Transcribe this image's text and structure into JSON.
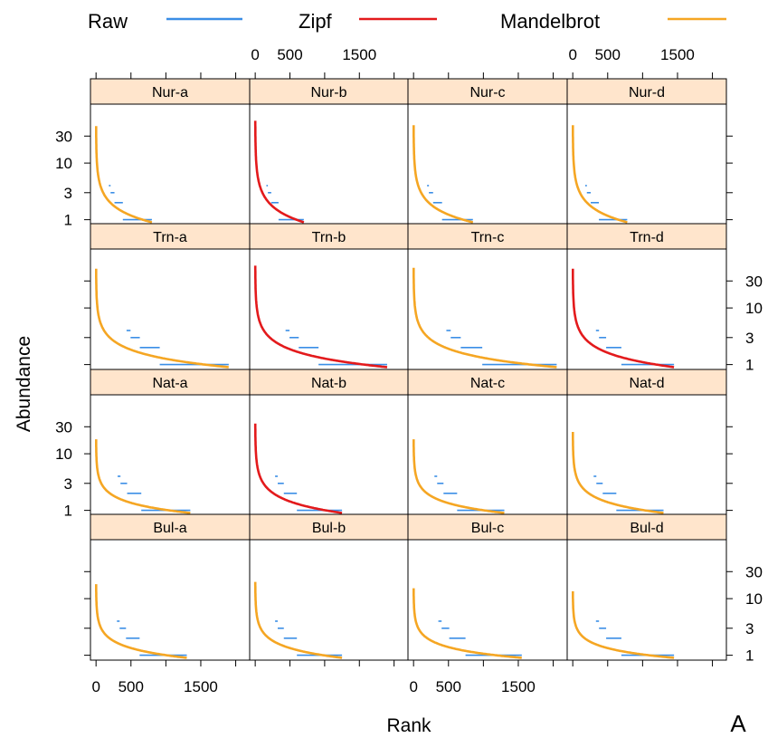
{
  "chart_data": {
    "type": "line",
    "panel_label": "A",
    "xlabel": "Rank",
    "ylabel": "Abundance",
    "x_ticks": [
      0,
      500,
      1500
    ],
    "x_tick_labels": [
      "0",
      "500",
      "1500"
    ],
    "y_ticks": [
      1,
      3,
      10,
      30
    ],
    "y_tick_labels": [
      "1",
      "3",
      "10",
      "30"
    ],
    "y_scale": "log",
    "xlim": [
      -80,
      2200
    ],
    "ylim": [
      0.82,
      110
    ],
    "legend": {
      "position": "top",
      "entries": [
        {
          "name": "Raw",
          "color": "#3a8ee6"
        },
        {
          "name": "Zipf",
          "color": "#e31a1c"
        },
        {
          "name": "Mandelbrot",
          "color": "#f5a623"
        }
      ]
    },
    "panels": [
      {
        "label": "Nur-a",
        "fit": "Mandelbrot",
        "max_rank": 800,
        "max_abundance": 50
      },
      {
        "label": "Nur-b",
        "fit": "Zipf",
        "max_rank": 700,
        "max_abundance": 62
      },
      {
        "label": "Nur-c",
        "fit": "Mandelbrot",
        "max_rank": 850,
        "max_abundance": 52
      },
      {
        "label": "Nur-d",
        "fit": "Mandelbrot",
        "max_rank": 780,
        "max_abundance": 52
      },
      {
        "label": "Trn-a",
        "fit": "Mandelbrot",
        "max_rank": 1900,
        "max_abundance": 55
      },
      {
        "label": "Trn-b",
        "fit": "Zipf",
        "max_rank": 1900,
        "max_abundance": 62
      },
      {
        "label": "Trn-c",
        "fit": "Mandelbrot",
        "max_rank": 2050,
        "max_abundance": 57
      },
      {
        "label": "Trn-d",
        "fit": "Zipf",
        "max_rank": 1450,
        "max_abundance": 55
      },
      {
        "label": "Nat-a",
        "fit": "Mandelbrot",
        "max_rank": 1350,
        "max_abundance": 20
      },
      {
        "label": "Nat-b",
        "fit": "Zipf",
        "max_rank": 1250,
        "max_abundance": 38
      },
      {
        "label": "Nat-c",
        "fit": "Mandelbrot",
        "max_rank": 1300,
        "max_abundance": 20
      },
      {
        "label": "Nat-d",
        "fit": "Mandelbrot",
        "max_rank": 1300,
        "max_abundance": 27
      },
      {
        "label": "Bul-a",
        "fit": "Mandelbrot",
        "max_rank": 1300,
        "max_abundance": 20
      },
      {
        "label": "Bul-b",
        "fit": "Mandelbrot",
        "max_rank": 1250,
        "max_abundance": 22
      },
      {
        "label": "Bul-c",
        "fit": "Mandelbrot",
        "max_rank": 1550,
        "max_abundance": 17
      },
      {
        "label": "Bul-d",
        "fit": "Mandelbrot",
        "max_rank": 1450,
        "max_abundance": 15
      }
    ]
  }
}
